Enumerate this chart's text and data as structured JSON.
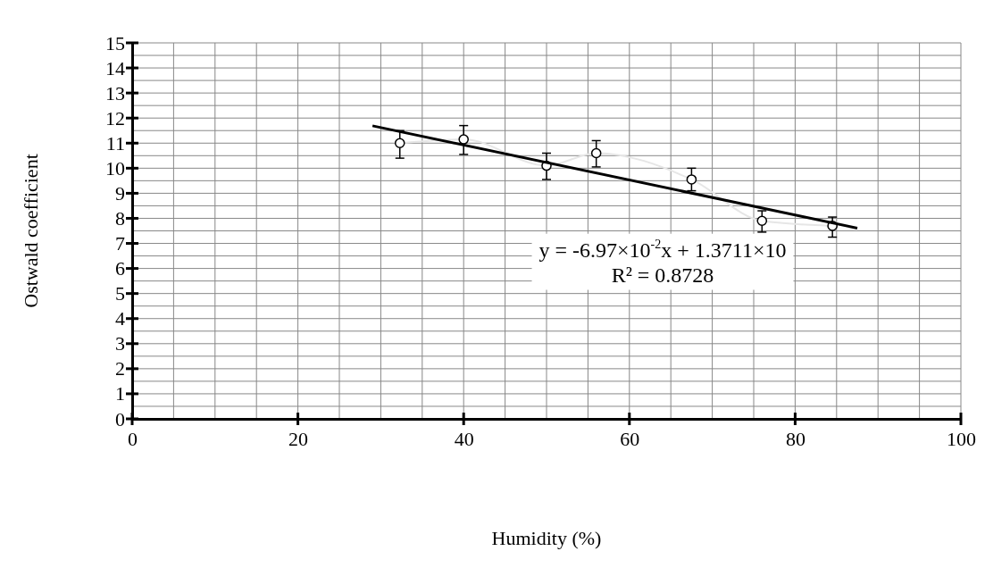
{
  "chart_data": {
    "type": "scatter",
    "xlabel": "Humidity (%)",
    "ylabel": "Ostwald coefficient",
    "xlim": [
      0,
      100
    ],
    "ylim": [
      0,
      15
    ],
    "xticks": [
      0,
      {
        "value": 5,
        "label": null
      },
      {
        "value": 10,
        "label": null
      },
      {
        "value": 15,
        "label": null
      },
      20,
      {
        "value": 25,
        "label": null
      },
      {
        "value": 30,
        "label": null
      },
      {
        "value": 35,
        "label": null
      },
      40,
      {
        "value": 45,
        "label": null
      },
      {
        "value": 50,
        "label": null
      },
      {
        "value": 55,
        "label": null
      },
      60,
      {
        "value": 65,
        "label": null
      },
      {
        "value": 70,
        "label": null
      },
      {
        "value": 75,
        "label": null
      },
      80,
      {
        "value": 85,
        "label": null
      },
      {
        "value": 90,
        "label": null
      },
      {
        "value": 95,
        "label": null
      },
      100
    ],
    "yticks": [
      0,
      {
        "value": 0.5,
        "label": null
      },
      1,
      {
        "value": 1.5,
        "label": null
      },
      2,
      {
        "value": 2.5,
        "label": null
      },
      3,
      {
        "value": 3.5,
        "label": null
      },
      4,
      {
        "value": 4.5,
        "label": null
      },
      5,
      {
        "value": 5.5,
        "label": null
      },
      6,
      {
        "value": 6.5,
        "label": null
      },
      7,
      {
        "value": 7.5,
        "label": null
      },
      8,
      {
        "value": 8.5,
        "label": null
      },
      9,
      {
        "value": 9.5,
        "label": null
      },
      10,
      {
        "value": 10.5,
        "label": null
      },
      11,
      {
        "value": 11.5,
        "label": null
      },
      12,
      {
        "value": 12.5,
        "label": null
      },
      13,
      {
        "value": 13.5,
        "label": null
      },
      14,
      {
        "value": 14.5,
        "label": null
      },
      15
    ],
    "grid": true,
    "series": [
      {
        "type": "line",
        "color": "#e6e6e6",
        "x": [
          32.3,
          40,
          50,
          56,
          67.5,
          76,
          84.5
        ],
        "values": [
          11.0,
          11.15,
          10.1,
          10.6,
          9.55,
          7.9,
          7.7
        ]
      },
      {
        "color": "#000000",
        "marker": "circle",
        "x": [
          32.3,
          40,
          50,
          56,
          67.5,
          76,
          84.5
        ],
        "values": [
          11.0,
          11.15,
          10.1,
          10.6,
          9.55,
          7.9,
          7.7
        ],
        "errors": [
          [
            10.4,
            11.5
          ],
          [
            10.55,
            11.7
          ],
          [
            9.55,
            10.6
          ],
          [
            10.05,
            11.1
          ],
          [
            9.1,
            10.0
          ],
          [
            7.45,
            8.3
          ],
          [
            7.25,
            8.05
          ]
        ]
      },
      {
        "type": "line",
        "color": "#000000",
        "x": [
          29,
          87.5
        ],
        "values": [
          11.69,
          7.61
        ]
      }
    ],
    "annotations": [
      "y = -6.97×10$^{-2}$x + 1.3711×10",
      "R² = 0.8728"
    ]
  }
}
